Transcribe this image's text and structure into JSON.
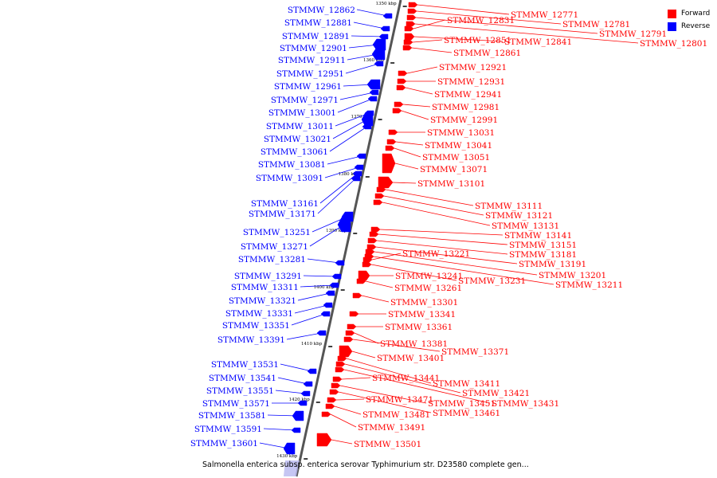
{
  "legend": {
    "forward": {
      "label": "Forward",
      "color": "#ff0000"
    },
    "reverse": {
      "label": "Reverse",
      "color": "#0000ff"
    }
  },
  "caption": "Salmonella enterica subsp. enterica serovar Typhimurium str. D23580 complete gen...",
  "scale": {
    "unit": "kbp",
    "ticks": [
      {
        "label": "1350 kbp"
      },
      {
        "label": "1360 kbp"
      },
      {
        "label": "1370 kbp"
      },
      {
        "label": "1380 kbp"
      },
      {
        "label": "1390 kbp"
      },
      {
        "label": "1400 kbp"
      },
      {
        "label": "1410 kbp"
      },
      {
        "label": "1420 kbp"
      },
      {
        "label": "1430 kbp"
      }
    ]
  },
  "forward_genes": [
    "STMMW_12771",
    "STMMW_12781",
    "STMMW_12791",
    "STMMW_12801",
    "STMMW_12831",
    "STMMW_12841",
    "STMMW_12851",
    "STMMW_12861",
    "STMMW_12921",
    "STMMW_12931",
    "STMMW_12941",
    "STMMW_12981",
    "STMMW_12991",
    "STMMW_13031",
    "STMMW_13041",
    "STMMW_13051",
    "STMMW_13071",
    "STMMW_13101",
    "STMMW_13111",
    "STMMW_13121",
    "STMMW_13131",
    "STMMW_13141",
    "STMMW_13151",
    "STMMW_13181",
    "STMMW_13191",
    "STMMW_13201",
    "STMMW_13211",
    "STMMW_13221",
    "STMMW_13231",
    "STMMW_13241",
    "STMMW_13261",
    "STMMW_13301",
    "STMMW_13341",
    "STMMW_13361",
    "STMMW_13381",
    "STMMW_13371",
    "STMMW_13401",
    "STMMW_13411",
    "STMMW_13421",
    "STMMW_13431",
    "STMMW_13441",
    "STMMW_13451",
    "STMMW_13461",
    "STMMW_13471",
    "STMMW_13481",
    "STMMW_13491",
    "STMMW_13501"
  ],
  "reverse_genes": [
    "STMMW_12862",
    "STMMW_12881",
    "STMMW_12891",
    "STMMW_12901",
    "STMMW_12911",
    "STMMW_12951",
    "STMMW_12961",
    "STMMW_12971",
    "STMMW_13001",
    "STMMW_13011",
    "STMMW_13021",
    "STMMW_13061",
    "STMMW_13081",
    "STMMW_13091",
    "STMMW_13161",
    "STMMW_13171",
    "STMMW_13251",
    "STMMW_13271",
    "STMMW_13281",
    "STMMW_13291",
    "STMMW_13311",
    "STMMW_13321",
    "STMMW_13331",
    "STMMW_13351",
    "STMMW_13391",
    "STMMW_13531",
    "STMMW_13541",
    "STMMW_13551",
    "STMMW_13571",
    "STMMW_13581",
    "STMMW_13591",
    "STMMW_13601"
  ]
}
